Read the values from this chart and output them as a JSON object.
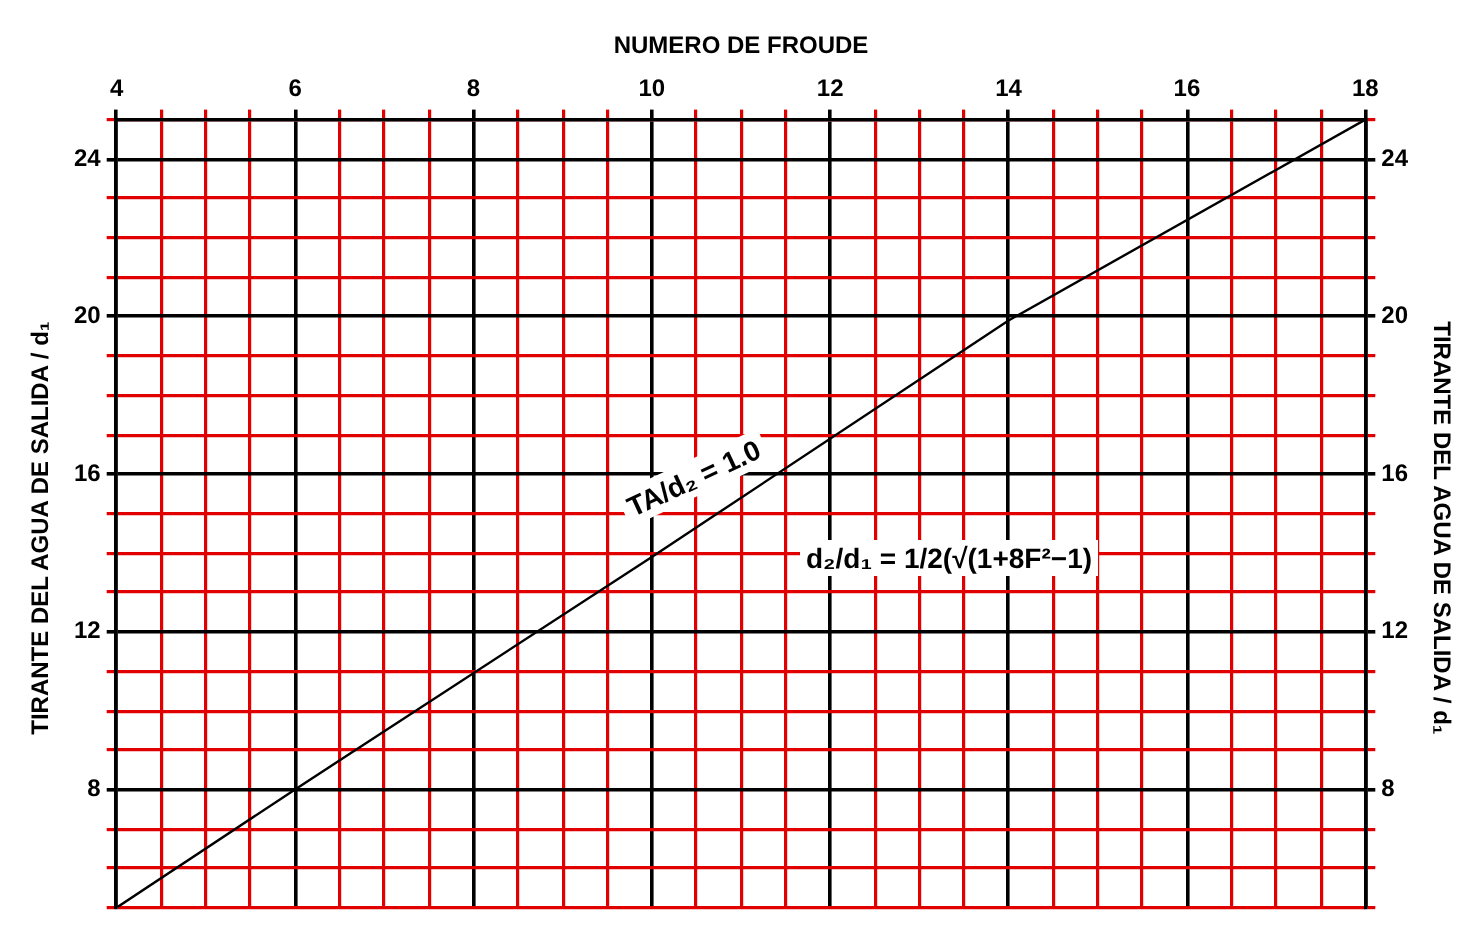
{
  "chart_data": {
    "type": "line",
    "xlabel": "NUMERO DE FROUDE",
    "ylabel": "TIRANTE DEL AGUA DE SALIDA / d₁",
    "y2label": "TIRANTE DEL AGUA DE SALIDA / d₁",
    "x": [
      4,
      6,
      10,
      14,
      18
    ],
    "series": [
      {
        "color": "#000000",
        "values": [
          5,
          8,
          13.9,
          19.9,
          25
        ]
      }
    ],
    "xlim": [
      4,
      18
    ],
    "xticks": [
      4,
      {
        "value": 4.5,
        "label": null
      },
      {
        "value": 5,
        "label": null
      },
      {
        "value": 5.5,
        "label": null
      },
      6,
      {
        "value": 6.5,
        "label": null
      },
      {
        "value": 7,
        "label": null
      },
      {
        "value": 7.5,
        "label": null
      },
      8,
      {
        "value": 8.5,
        "label": null
      },
      {
        "value": 9,
        "label": null
      },
      {
        "value": 9.5,
        "label": null
      },
      10,
      {
        "value": 10.5,
        "label": null
      },
      {
        "value": 11,
        "label": null
      },
      {
        "value": 11.5,
        "label": null
      },
      12,
      {
        "value": 12.5,
        "label": null
      },
      {
        "value": 13,
        "label": null
      },
      {
        "value": 13.5,
        "label": null
      },
      14,
      {
        "value": 14.5,
        "label": null
      },
      {
        "value": 15,
        "label": null
      },
      {
        "value": 15.5,
        "label": null
      },
      16,
      {
        "value": 16.5,
        "label": null
      },
      {
        "value": 17,
        "label": null
      },
      {
        "value": 17.5,
        "label": null
      },
      18
    ],
    "ylim": [
      5,
      25
    ],
    "yticks": [
      {
        "value": 5,
        "label": null
      },
      {
        "value": 6,
        "label": null
      },
      {
        "value": 7,
        "label": null
      },
      8,
      {
        "value": 9,
        "label": null
      },
      {
        "value": 10,
        "label": null
      },
      {
        "value": 11,
        "label": null
      },
      12,
      {
        "value": 13,
        "label": null
      },
      {
        "value": 14,
        "label": null
      },
      {
        "value": 15,
        "label": null
      },
      16,
      {
        "value": 17,
        "label": null
      },
      {
        "value": 18,
        "label": null
      },
      {
        "value": 19,
        "label": null
      },
      20,
      {
        "value": 21,
        "label": null
      },
      {
        "value": 22,
        "label": null
      },
      {
        "value": 23,
        "label": null
      },
      24,
      {
        "value": 25,
        "label": null
      }
    ],
    "y2lim": [
      5,
      25
    ],
    "y2ticks": [
      {
        "value": 5,
        "label": null
      },
      {
        "value": 6,
        "label": null
      },
      {
        "value": 7,
        "label": null
      },
      8,
      {
        "value": 9,
        "label": null
      },
      {
        "value": 10,
        "label": null
      },
      {
        "value": 11,
        "label": null
      },
      12,
      {
        "value": 13,
        "label": null
      },
      {
        "value": 14,
        "label": null
      },
      {
        "value": 15,
        "label": null
      },
      16,
      {
        "value": 17,
        "label": null
      },
      {
        "value": 18,
        "label": null
      },
      {
        "value": 19,
        "label": null
      },
      20,
      {
        "value": 21,
        "label": null
      },
      {
        "value": 22,
        "label": null
      },
      {
        "value": 23,
        "label": null
      },
      24,
      {
        "value": 25,
        "label": null
      }
    ],
    "grid": true,
    "legend": false,
    "marker": "none",
    "line_style": "solid",
    "annotations": [
      "TA/d₂ = 1.0",
      "d₂/d₁ = 1/2(√(1+8F²−1)"
    ]
  }
}
